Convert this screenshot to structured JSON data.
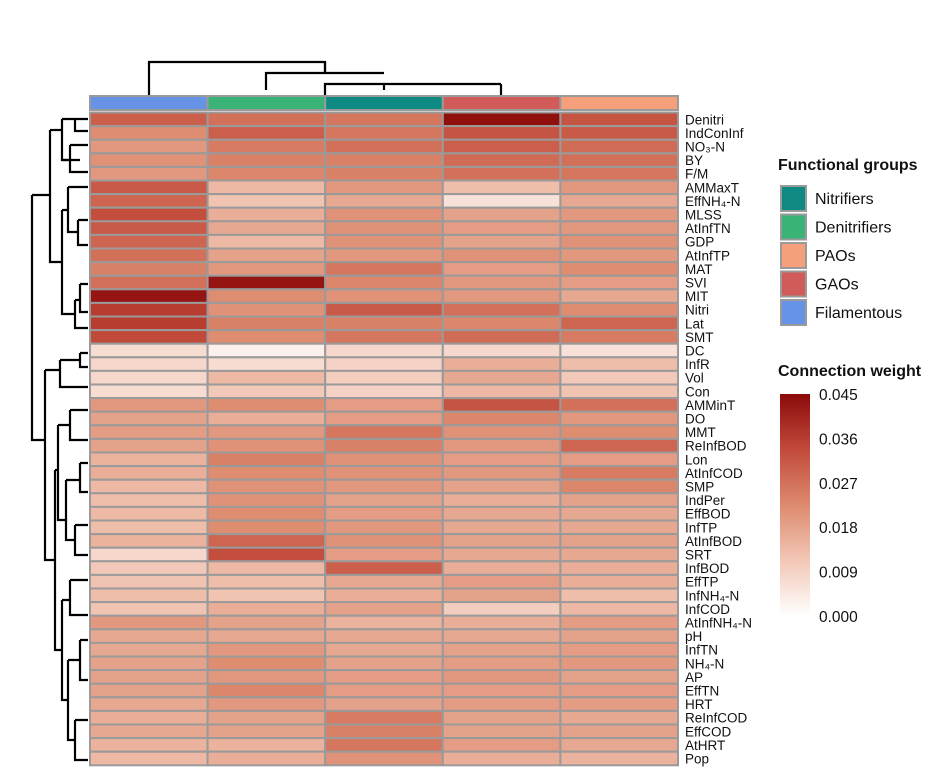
{
  "chart_data": {
    "type": "heatmap",
    "title": "",
    "columns": [
      "Filamentous",
      "Denitrifiers",
      "Nitrifiers",
      "GAOs",
      "PAOs"
    ],
    "rows": [
      "Denitri",
      "IndConInf",
      "NO₃-N",
      "BY",
      "F/M",
      "AMMaxT",
      "EffNH₄-N",
      "MLSS",
      "AtInfTN",
      "GDP",
      "AtInfTP",
      "MAT",
      "SVI",
      "MIT",
      "Nitri",
      "Lat",
      "SMT",
      "DC",
      "InfR",
      "Vol",
      "Con",
      "AMMinT",
      "DO",
      "MMT",
      "ReInfBOD",
      "Lon",
      "AtInfCOD",
      "SMP",
      "IndPer",
      "EffBOD",
      "InfTP",
      "AtInfBOD",
      "SRT",
      "InfBOD",
      "EffTP",
      "InfNH₄-N",
      "InfCOD",
      "AtInfNH₄-N",
      "pH",
      "InfTN",
      "NH₄-N",
      "AP",
      "EffTN",
      "HRT",
      "ReInfCOD",
      "EffCOD",
      "AtHRT",
      "Pop"
    ],
    "values": [
      [
        0.03,
        0.027,
        0.026,
        0.044,
        0.032
      ],
      [
        0.022,
        0.03,
        0.026,
        0.032,
        0.031
      ],
      [
        0.02,
        0.025,
        0.027,
        0.03,
        0.028
      ],
      [
        0.021,
        0.024,
        0.024,
        0.028,
        0.027
      ],
      [
        0.02,
        0.023,
        0.024,
        0.027,
        0.026
      ],
      [
        0.031,
        0.014,
        0.02,
        0.013,
        0.02
      ],
      [
        0.029,
        0.012,
        0.017,
        0.006,
        0.017
      ],
      [
        0.033,
        0.016,
        0.021,
        0.018,
        0.02
      ],
      [
        0.031,
        0.017,
        0.021,
        0.019,
        0.02
      ],
      [
        0.029,
        0.014,
        0.021,
        0.018,
        0.021
      ],
      [
        0.027,
        0.018,
        0.02,
        0.021,
        0.02
      ],
      [
        0.024,
        0.02,
        0.026,
        0.019,
        0.022
      ],
      [
        0.027,
        0.043,
        0.023,
        0.02,
        0.019
      ],
      [
        0.043,
        0.022,
        0.021,
        0.02,
        0.017
      ],
      [
        0.036,
        0.021,
        0.031,
        0.027,
        0.022
      ],
      [
        0.036,
        0.024,
        0.024,
        0.023,
        0.029
      ],
      [
        0.034,
        0.022,
        0.026,
        0.028,
        0.025
      ],
      [
        0.007,
        0.003,
        0.008,
        0.008,
        0.006
      ],
      [
        0.008,
        0.007,
        0.009,
        0.016,
        0.013
      ],
      [
        0.008,
        0.014,
        0.01,
        0.017,
        0.011
      ],
      [
        0.007,
        0.011,
        0.009,
        0.014,
        0.012
      ],
      [
        0.02,
        0.022,
        0.019,
        0.032,
        0.027
      ],
      [
        0.018,
        0.016,
        0.019,
        0.023,
        0.02
      ],
      [
        0.019,
        0.02,
        0.026,
        0.021,
        0.022
      ],
      [
        0.018,
        0.021,
        0.024,
        0.02,
        0.029
      ],
      [
        0.015,
        0.024,
        0.021,
        0.019,
        0.019
      ],
      [
        0.016,
        0.022,
        0.021,
        0.02,
        0.025
      ],
      [
        0.014,
        0.021,
        0.02,
        0.018,
        0.023
      ],
      [
        0.013,
        0.021,
        0.018,
        0.016,
        0.018
      ],
      [
        0.014,
        0.022,
        0.019,
        0.017,
        0.017
      ],
      [
        0.013,
        0.022,
        0.02,
        0.017,
        0.017
      ],
      [
        0.015,
        0.029,
        0.021,
        0.018,
        0.018
      ],
      [
        0.008,
        0.033,
        0.019,
        0.017,
        0.017
      ],
      [
        0.011,
        0.014,
        0.03,
        0.016,
        0.016
      ],
      [
        0.012,
        0.013,
        0.017,
        0.019,
        0.016
      ],
      [
        0.013,
        0.012,
        0.016,
        0.018,
        0.013
      ],
      [
        0.012,
        0.016,
        0.018,
        0.01,
        0.014
      ],
      [
        0.02,
        0.018,
        0.015,
        0.016,
        0.019
      ],
      [
        0.017,
        0.017,
        0.017,
        0.017,
        0.018
      ],
      [
        0.017,
        0.02,
        0.017,
        0.018,
        0.019
      ],
      [
        0.018,
        0.022,
        0.018,
        0.019,
        0.02
      ],
      [
        0.018,
        0.02,
        0.019,
        0.02,
        0.018
      ],
      [
        0.018,
        0.023,
        0.019,
        0.019,
        0.019
      ],
      [
        0.017,
        0.02,
        0.018,
        0.019,
        0.019
      ],
      [
        0.016,
        0.018,
        0.025,
        0.018,
        0.017
      ],
      [
        0.017,
        0.018,
        0.024,
        0.018,
        0.018
      ],
      [
        0.015,
        0.015,
        0.026,
        0.019,
        0.017
      ],
      [
        0.014,
        0.016,
        0.021,
        0.016,
        0.015
      ]
    ],
    "colorbar": {
      "title": "Connection weight",
      "ticks": [
        "0.045",
        "0.036",
        "0.027",
        "0.018",
        "0.009",
        "0.000"
      ],
      "min": 0.0,
      "max": 0.045,
      "colors": [
        "#ffffff",
        "#f2c7b6",
        "#dd8a6e",
        "#c24a3b",
        "#8b0a0a"
      ]
    },
    "legend": {
      "title": "Functional groups",
      "position": "right",
      "items": [
        {
          "label": "Nitrifiers",
          "color": "#0f8a83"
        },
        {
          "label": "Denitrifiers",
          "color": "#3ab377"
        },
        {
          "label": "PAOs",
          "color": "#f6a07b"
        },
        {
          "label": "GAOs",
          "color": "#d05b58"
        },
        {
          "label": "Filamentous",
          "color": "#6793e6"
        }
      ]
    },
    "column_annotation_colors": [
      "#6793e6",
      "#3ab377",
      "#0f8a83",
      "#d05b58",
      "#f6a07b"
    ]
  }
}
